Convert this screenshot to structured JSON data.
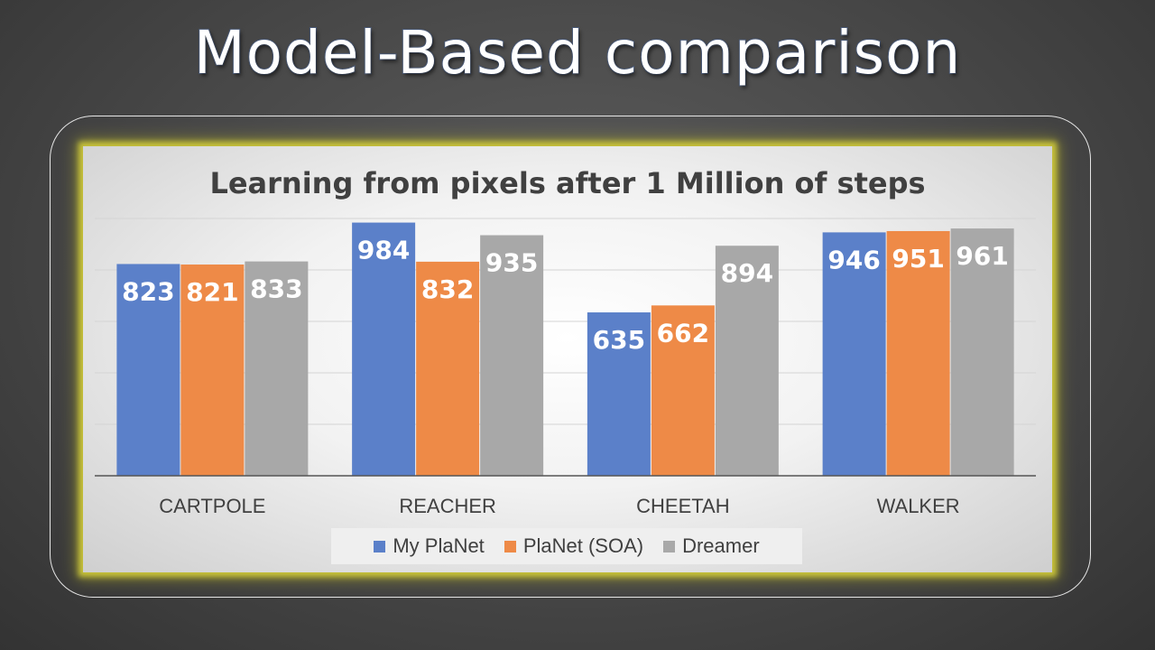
{
  "slide": {
    "title": "Model-Based comparison"
  },
  "chart_data": {
    "type": "bar",
    "title": "Learning from pixels after 1 Million of steps",
    "xlabel": "",
    "ylabel": "",
    "ylim": [
      0,
      1000
    ],
    "grid": true,
    "legend_position": "bottom",
    "categories": [
      "CARTPOLE",
      "REACHER",
      "CHEETAH",
      "WALKER"
    ],
    "series": [
      {
        "name": "My PlaNet",
        "values": [
          823,
          984,
          635,
          946
        ],
        "color": "#5b80c9"
      },
      {
        "name": "PlaNet (SOA)",
        "values": [
          821,
          832,
          662,
          951
        ],
        "color": "#ee8a47"
      },
      {
        "name": "Dreamer",
        "values": [
          833,
          935,
          894,
          961
        ],
        "color": "#a8a8a8"
      }
    ]
  }
}
